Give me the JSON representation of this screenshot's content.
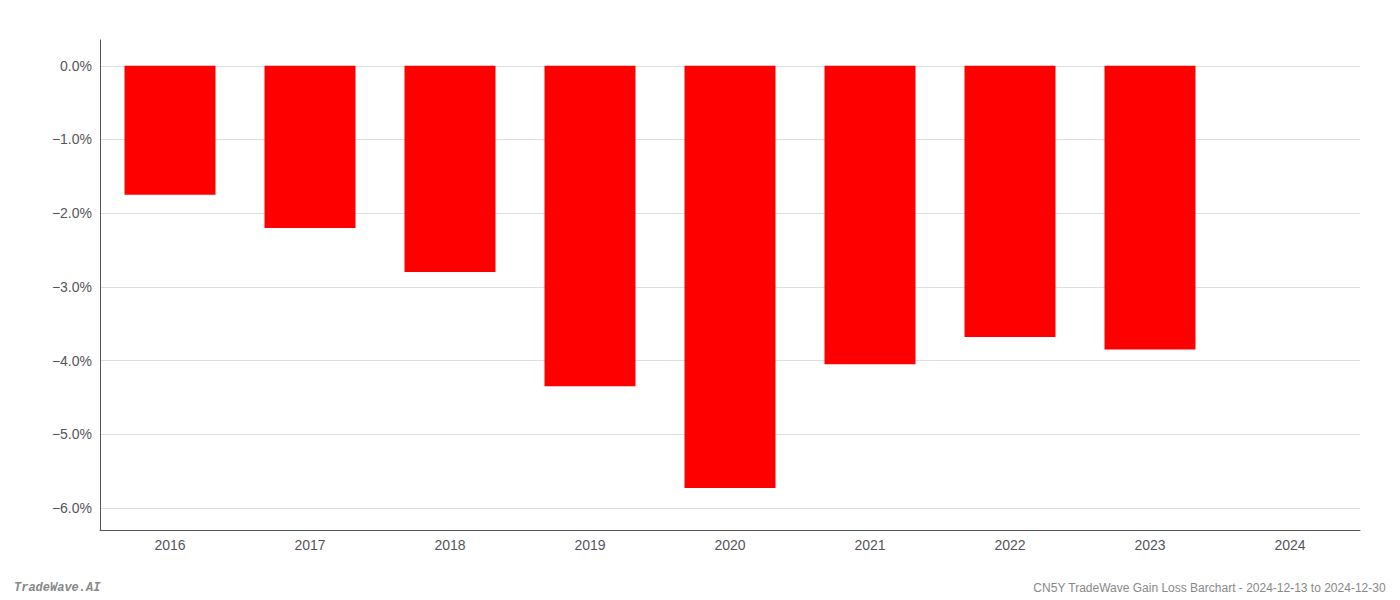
{
  "chart_data": {
    "type": "bar",
    "categories": [
      "2016",
      "2017",
      "2018",
      "2019",
      "2020",
      "2021",
      "2022",
      "2023",
      "2024"
    ],
    "values": [
      -1.75,
      -2.2,
      -2.8,
      -4.35,
      -5.73,
      -4.05,
      -3.68,
      -3.85,
      0.0
    ],
    "color": "#ff0000",
    "ylim": [
      -6.3,
      0.35
    ],
    "yticks": [
      {
        "value": 0.0,
        "label": "0.0%"
      },
      {
        "value": -1.0,
        "label": "−1.0%"
      },
      {
        "value": -2.0,
        "label": "−2.0%"
      },
      {
        "value": -3.0,
        "label": "−3.0%"
      },
      {
        "value": -4.0,
        "label": "−4.0%"
      },
      {
        "value": -5.0,
        "label": "−5.0%"
      },
      {
        "value": -6.0,
        "label": "−6.0%"
      }
    ],
    "grid": true,
    "annotations": [
      "TradeWave.AI",
      "CN5Y TradeWave Gain Loss Barchart - 2024-12-13 to 2024-12-30"
    ]
  }
}
